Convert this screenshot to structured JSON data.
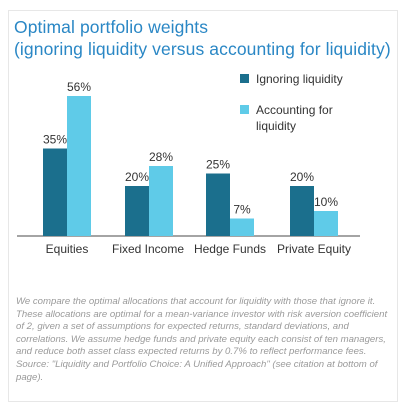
{
  "header": {
    "title_line1": "Optimal portfolio weights",
    "title_line2": "(ignoring liquidity versus accounting for liquidity)"
  },
  "legend": {
    "items": [
      {
        "label_lines": [
          "Ignoring liquidity"
        ],
        "color": "#1b6f8d"
      },
      {
        "label_lines": [
          "Accounting for",
          "liquidity"
        ],
        "color": "#5fcbe8"
      }
    ]
  },
  "caption": "We compare the optimal allocations that account for liquidity with those that ignore it. These allocations are optimal for a mean-variance investor with risk aversion coefficient of 2, given a set of assumptions for expected returns, standard deviations, and correlations. We assume hedge funds and private equity each consist of ten managers, and reduce both asset class expected returns by 0.7% to reflect performance fees. Source:  \"Liquidity and Portfolio Choice: A Unified Approach\" (see citation at bottom of page).",
  "chart_data": {
    "type": "bar",
    "title": "Optimal portfolio weights (ignoring liquidity versus accounting for liquidity)",
    "categories": [
      "Equities",
      "Fixed Income",
      "Hedge Funds",
      "Private Equity"
    ],
    "series": [
      {
        "name": "Ignoring liquidity",
        "values": [
          35,
          20,
          25,
          20
        ],
        "labels": [
          "35%",
          "20%",
          "25%",
          "20%"
        ],
        "color": "#1b6f8d"
      },
      {
        "name": "Accounting for liquidity",
        "values": [
          56,
          28,
          7,
          10
        ],
        "labels": [
          "56%",
          "28%",
          "7%",
          "10%"
        ],
        "color": "#5fcbe8"
      }
    ],
    "ylim": [
      0,
      60
    ],
    "grid": false,
    "legend_position": "top-right"
  }
}
